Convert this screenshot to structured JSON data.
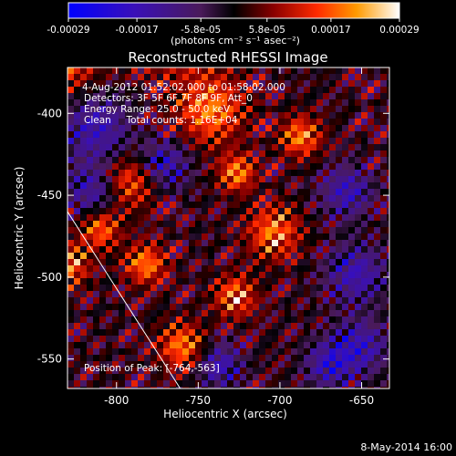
{
  "chart_data": {
    "type": "heatmap",
    "title": "Reconstructed RHESSI Image",
    "xlabel": "Heliocentric X (arcsec)",
    "ylabel": "Heliocentric Y (arcsec)",
    "xlim": [
      -830,
      -633
    ],
    "ylim": [
      -568,
      -372
    ],
    "x_ticks": [
      -800,
      -750,
      -700,
      -650
    ],
    "x_tick_labels": [
      "-800",
      "-750",
      "-700",
      "-650"
    ],
    "y_ticks": [
      -550,
      -500,
      -450,
      -400
    ],
    "y_tick_labels": [
      "-550",
      "-500",
      "-450",
      "-400"
    ],
    "colorbar": {
      "min": -0.00029,
      "max": 0.00029,
      "tick_values": [
        -0.00029,
        -0.00017,
        -5.8e-05,
        5.8e-05,
        0.00017,
        0.00029
      ],
      "tick_labels": [
        "-0.00029",
        "-0.00017",
        "-5.8e-05",
        "5.8e-05",
        "0.00017",
        "0.00029"
      ],
      "unit_label": "(photons cm⁻² s⁻¹ asec⁻²)"
    },
    "annotations": {
      "time_range": "4-Aug-2012 01:52:02.000 to 01:58:02.000",
      "detectors": "Detectors: 3F 5F 6F 7F 8F 9F, Att_0",
      "energy_range": "Energy Range: 25.0 - 50.0 keV",
      "clean_counts": "Clean     Total counts: 1.16E+04",
      "peak_position": "Position of Peak: [-764,-563]"
    },
    "peak": [
      -764,
      -563
    ],
    "limb_line": [
      [
        -830,
        -460
      ],
      [
        -761,
        -568
      ]
    ],
    "footer_date": "8-May-2014 16:00"
  }
}
